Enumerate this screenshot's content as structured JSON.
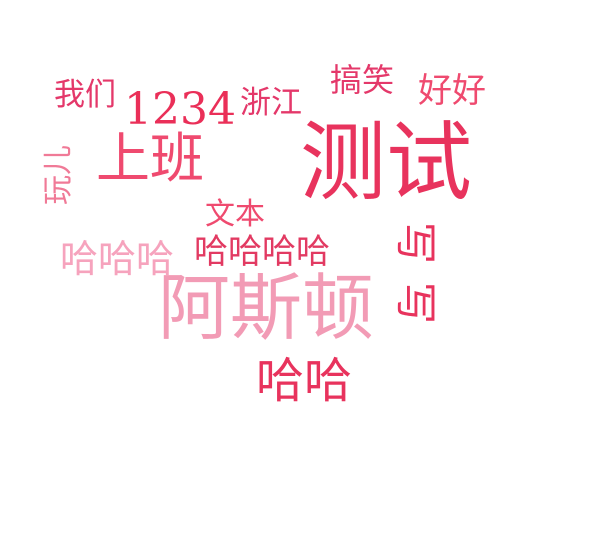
{
  "cloud": {
    "words": [
      {
        "id": "w-ceshi",
        "text": "测试",
        "color": "#e8335d"
      },
      {
        "id": "w-asidun",
        "text": "阿斯顿",
        "color": "#f29bb5"
      },
      {
        "id": "w-shangban",
        "text": "上班",
        "color": "#ef4a6f"
      },
      {
        "id": "w-1234",
        "text": "1234",
        "color": "#ea2f58"
      },
      {
        "id": "w-hahahaha",
        "text": "哈哈哈哈",
        "color": "#e23a62"
      },
      {
        "id": "w-hahaha",
        "text": "哈哈哈",
        "color": "#f6a3bd"
      },
      {
        "id": "w-haha",
        "text": "哈哈",
        "color": "#e8335d"
      },
      {
        "id": "w-wenben",
        "text": "文本",
        "color": "#ef4a6f"
      },
      {
        "id": "w-women",
        "text": "我们",
        "color": "#e4386a"
      },
      {
        "id": "w-zhejiang",
        "text": "浙江",
        "color": "#e4386a"
      },
      {
        "id": "w-gaoxiao",
        "text": "搞笑",
        "color": "#e4386a"
      },
      {
        "id": "w-haohao",
        "text": "好好",
        "color": "#ef4a6f"
      },
      {
        "id": "w-waner",
        "text": "玩儿",
        "color": "#f07a97"
      },
      {
        "id": "w-xie1",
        "text": "写",
        "color": "#e8335d"
      },
      {
        "id": "w-xie2",
        "text": "写",
        "color": "#e8335d"
      }
    ]
  }
}
